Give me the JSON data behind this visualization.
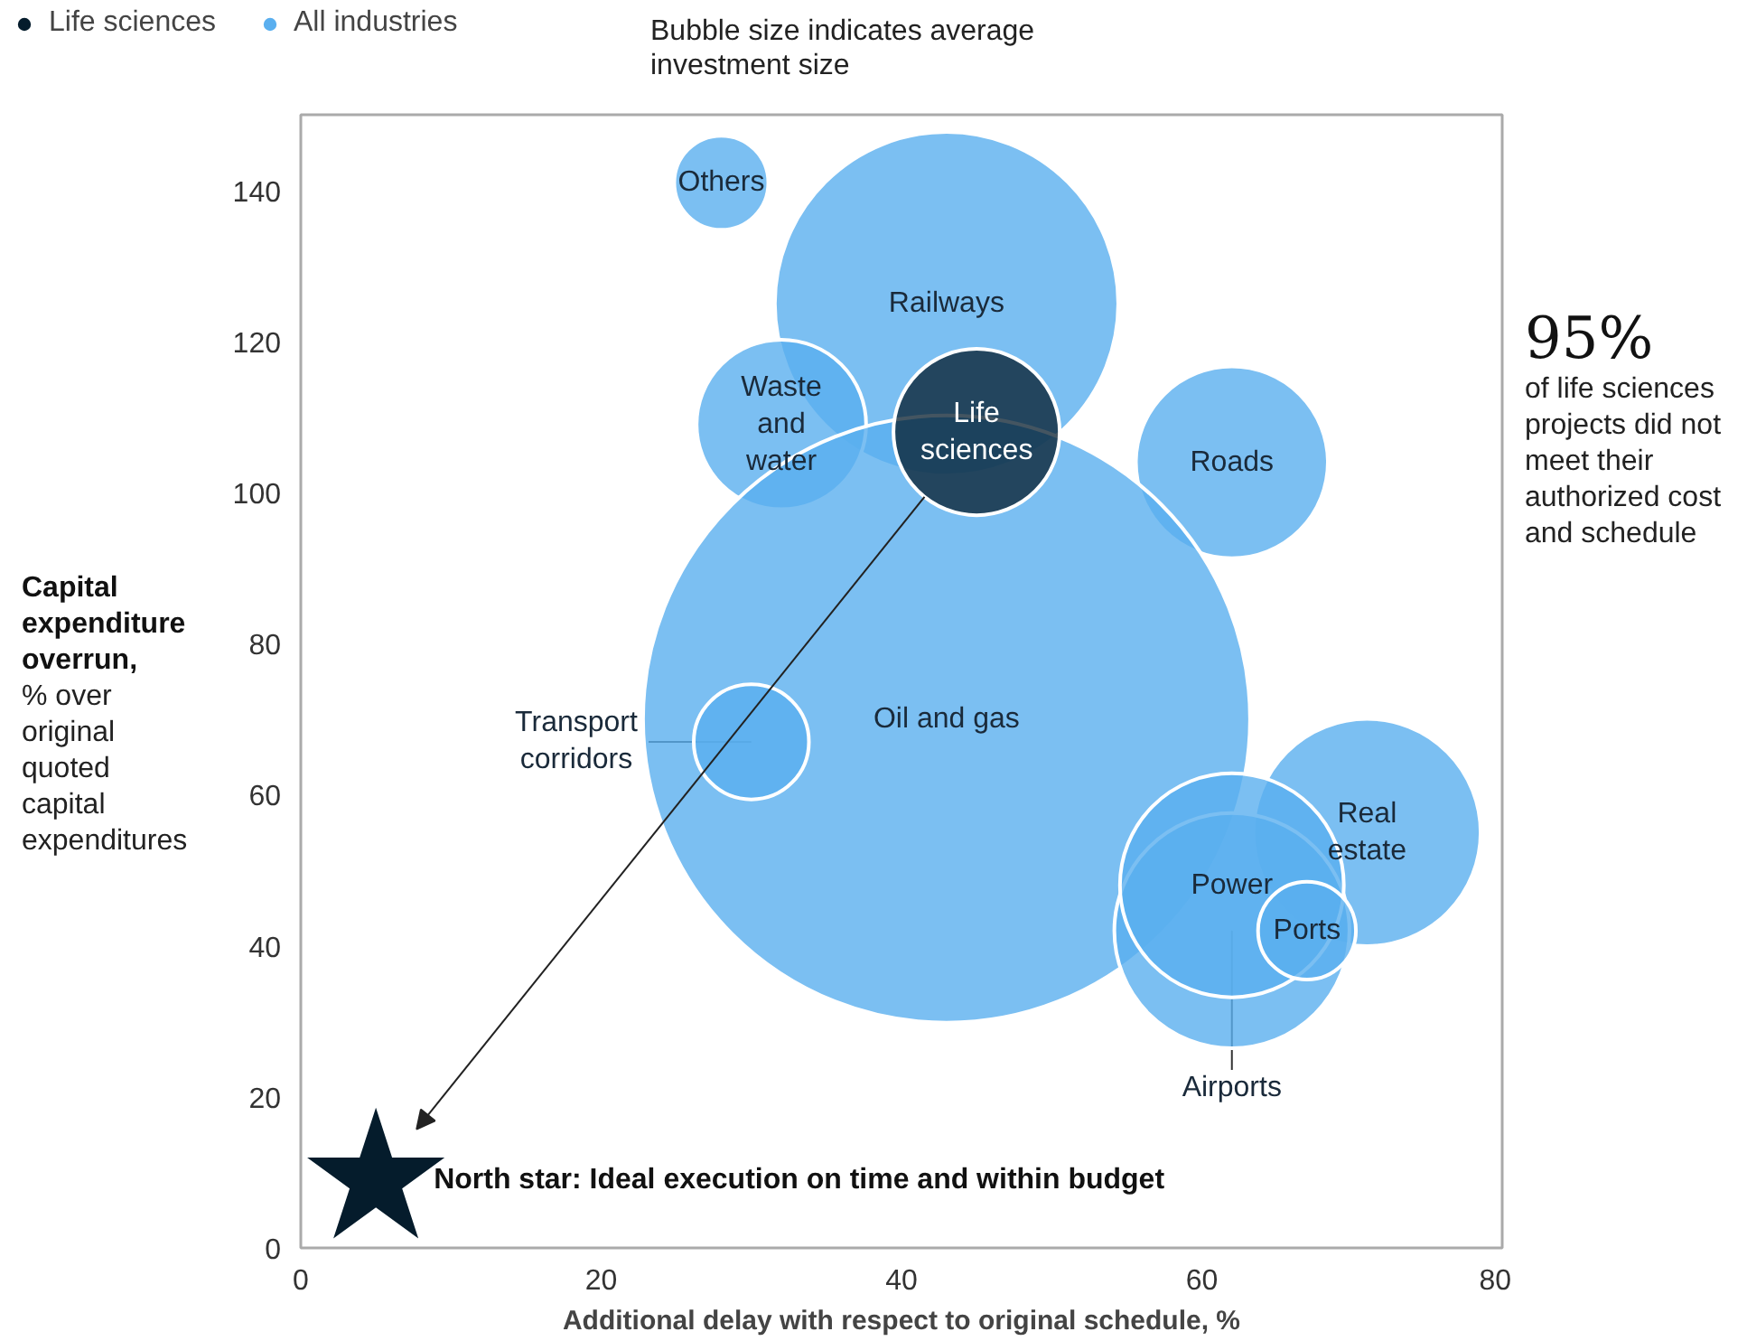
{
  "chart_data": {
    "type": "bubble",
    "xlabel": "Additional delay with respect to original schedule, %",
    "ylabel": "Capital expenditure overrun, % over original quoted capital expenditures",
    "xlim": [
      0,
      80
    ],
    "xticks": [
      0,
      20,
      40,
      60,
      80
    ],
    "ylim": [
      0,
      150
    ],
    "yticks": [
      0,
      20,
      40,
      60,
      80,
      100,
      120,
      140
    ],
    "grid": false,
    "legend": "top left",
    "series": [
      {
        "name": "Life sciences",
        "color": "#051c2c",
        "x": [
          45
        ],
        "values": [
          108
        ],
        "sizes": [
          0.075
        ]
      },
      {
        "name": "All industries",
        "color": "#5aafef",
        "x": [
          28,
          43,
          32,
          62,
          43,
          30,
          71,
          62,
          62,
          67
        ],
        "values": [
          141,
          125,
          109,
          104,
          70,
          67,
          55,
          42,
          48,
          42
        ],
        "sizes": [
          0.024,
          0.32,
          0.078,
          0.1,
          1,
          0.036,
          0.14,
          0.15,
          0.136,
          0.026
        ]
      },
      {
        "type": "scatter",
        "marker": "star",
        "color": "#051c2c",
        "x": [
          5
        ],
        "values": [
          9
        ]
      }
    ],
    "annotations": [
      {
        "text": "Others",
        "x": 28,
        "y": 141
      },
      {
        "text": "Railways",
        "x": 43,
        "y": 125
      },
      {
        "text": "Waste and water",
        "x": 32,
        "y": 109
      },
      {
        "text": "Life sciences",
        "x": 45,
        "y": 108
      },
      {
        "text": "Roads",
        "x": 62,
        "y": 104
      },
      {
        "text": "Oil and gas",
        "x": 43,
        "y": 70
      },
      {
        "text": "Transport corridors",
        "x": 30,
        "y": 67
      },
      {
        "text": "Real estate",
        "x": 71,
        "y": 55
      },
      {
        "text": "Power",
        "x": 62,
        "y": 48
      },
      {
        "text": "Ports",
        "x": 67,
        "y": 42
      },
      {
        "text": "Airports",
        "x": 62,
        "y": 42
      },
      {
        "text": "North star: Ideal execution on time and within budget",
        "x": 5,
        "y": 9
      },
      "Bubble size indicates average investment size",
      "95%",
      "of life sciences projects did not meet their authorized cost and schedule"
    ]
  }
}
